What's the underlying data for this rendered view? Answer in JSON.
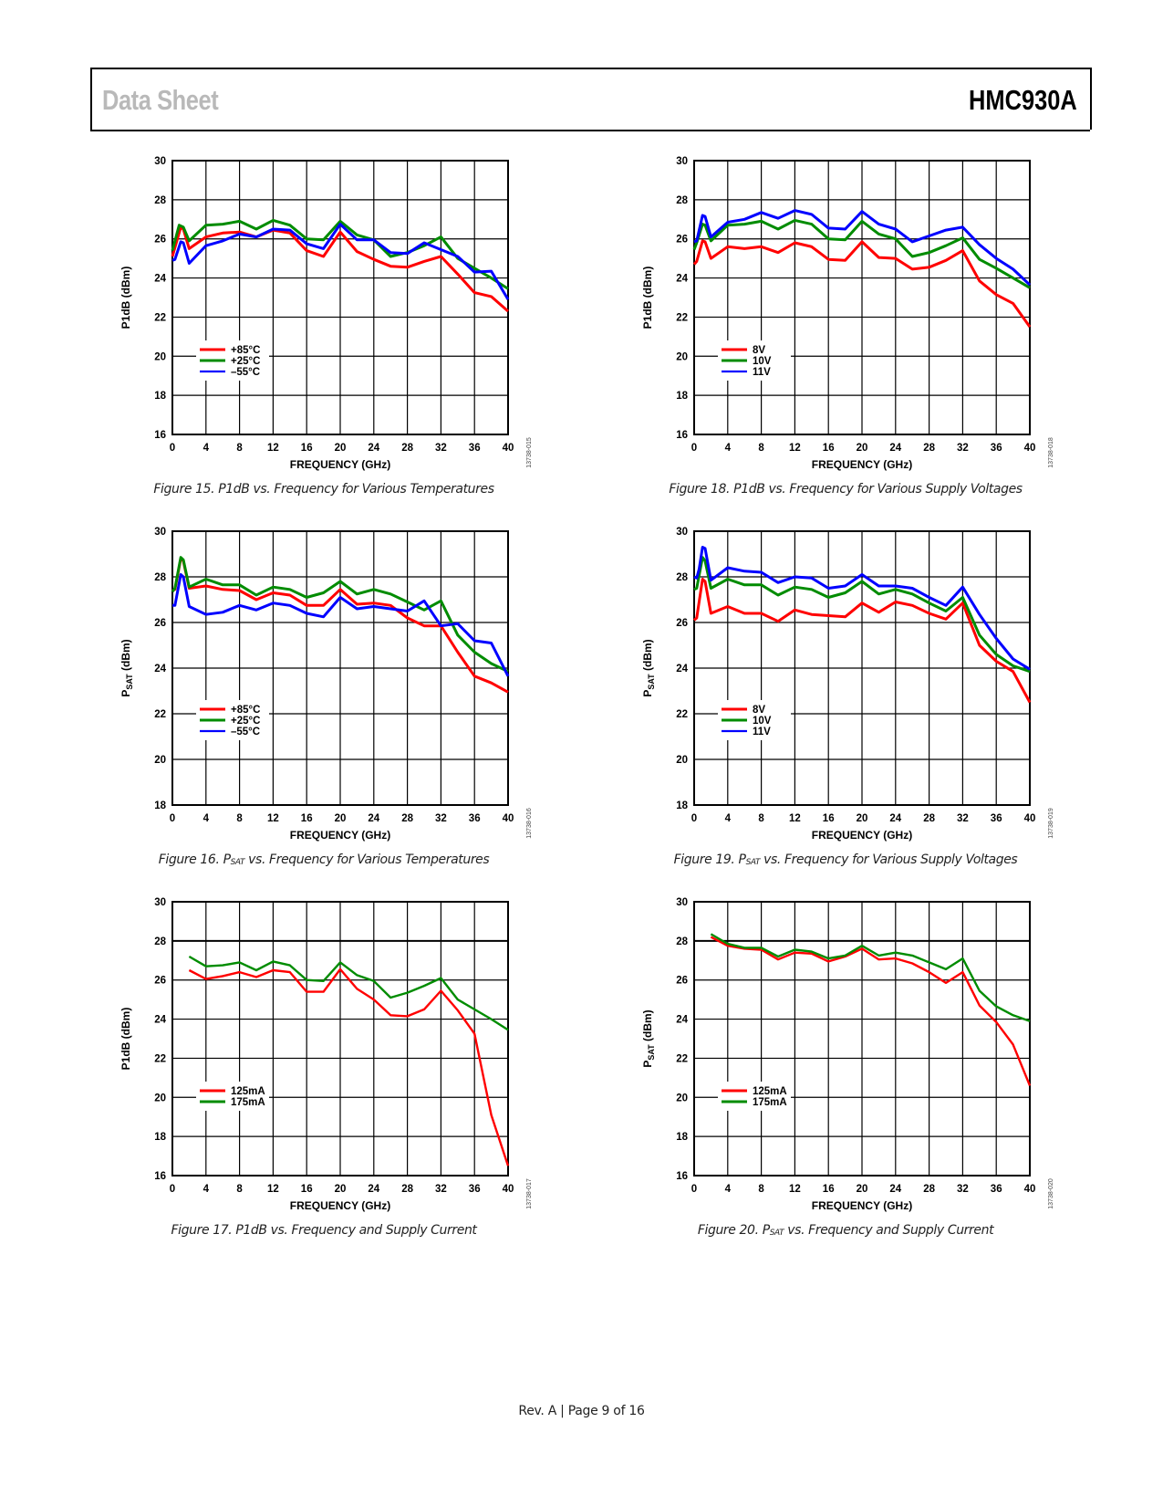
{
  "header": {
    "left": "Data Sheet",
    "right": "HMC930A"
  },
  "footer": {
    "text": "Rev. A | Page 9 of 16"
  },
  "chart_data": [
    {
      "id": "fig15",
      "type": "line",
      "figure_number": "Figure 15.",
      "caption_main": "P1dB",
      "caption_sub": "",
      "caption_rest": " vs. Frequency for Various Temperatures",
      "figure_id": "13738-015",
      "xlabel": "FREQUENCY (GHz)",
      "ylabel_main": "P1dB (dBm)",
      "ylabel_sub": "",
      "ylabel_rest": "",
      "xlim": [
        0,
        40
      ],
      "ylim": [
        16,
        30
      ],
      "xticks": [
        0,
        4,
        8,
        12,
        16,
        20,
        24,
        28,
        32,
        36,
        40
      ],
      "yticks": [
        16,
        18,
        20,
        22,
        24,
        26,
        28,
        30
      ],
      "grid": true,
      "legend_position": "lower-left",
      "series": [
        {
          "name": "+85°C",
          "color": "#ff0000",
          "x": [
            0,
            1,
            1.3,
            2,
            4,
            6,
            8,
            10,
            12,
            14,
            16,
            18,
            20,
            22,
            24,
            26,
            28,
            30,
            32,
            34,
            36,
            38,
            40
          ],
          "y": [
            25.1,
            26.6,
            26.5,
            25.5,
            26.1,
            26.3,
            26.35,
            26.1,
            26.45,
            26.3,
            25.4,
            25.1,
            26.35,
            25.35,
            24.95,
            24.6,
            24.55,
            24.85,
            25.1,
            24.2,
            23.25,
            23.05,
            22.3
          ]
        },
        {
          "name": "+25°C",
          "color": "#008c00",
          "x": [
            0,
            0.8,
            1.3,
            2,
            4,
            6,
            8,
            10,
            12,
            14,
            16,
            18,
            20,
            22,
            24,
            26,
            28,
            30,
            32,
            34,
            36,
            38,
            40
          ],
          "y": [
            25.4,
            26.7,
            26.6,
            25.9,
            26.7,
            26.75,
            26.9,
            26.5,
            26.95,
            26.7,
            26.0,
            25.95,
            26.9,
            26.2,
            25.95,
            25.1,
            25.3,
            25.65,
            26.1,
            25.0,
            24.5,
            24.0,
            23.45
          ]
        },
        {
          "name": "–55°C",
          "color": "#0000ff",
          "x": [
            0,
            0.3,
            1.0,
            1.3,
            2,
            4,
            6,
            8,
            10,
            12,
            14,
            16,
            18,
            20,
            22,
            24,
            26,
            28,
            30,
            32,
            34,
            36,
            38,
            40
          ],
          "y": [
            24.9,
            24.95,
            25.85,
            25.8,
            24.75,
            25.65,
            25.9,
            26.25,
            26.1,
            26.5,
            26.45,
            25.75,
            25.5,
            26.75,
            25.95,
            25.95,
            25.3,
            25.25,
            25.8,
            25.45,
            25.1,
            24.3,
            24.35,
            22.9
          ]
        }
      ]
    },
    {
      "id": "fig18",
      "type": "line",
      "figure_number": "Figure 18.",
      "caption_main": "P1dB",
      "caption_sub": "",
      "caption_rest": " vs. Frequency for Various Supply Voltages",
      "figure_id": "13738-018",
      "xlabel": "FREQUENCY (GHz)",
      "ylabel_main": "P1dB (dBm)",
      "ylabel_sub": "",
      "ylabel_rest": "",
      "xlim": [
        0,
        40
      ],
      "ylim": [
        16,
        30
      ],
      "xticks": [
        0,
        4,
        8,
        12,
        16,
        20,
        24,
        28,
        32,
        36,
        40
      ],
      "yticks": [
        16,
        18,
        20,
        22,
        24,
        26,
        28,
        30
      ],
      "grid": true,
      "legend_position": "lower-left",
      "series": [
        {
          "name": "8V",
          "color": "#ff0000",
          "x": [
            0,
            0.3,
            1.0,
            1.3,
            2,
            4,
            6,
            8,
            10,
            12,
            14,
            16,
            18,
            20,
            22,
            24,
            26,
            28,
            30,
            32,
            34,
            36,
            38,
            40
          ],
          "y": [
            24.7,
            24.85,
            25.9,
            25.85,
            25.0,
            25.6,
            25.5,
            25.6,
            25.3,
            25.8,
            25.6,
            24.95,
            24.9,
            25.85,
            25.05,
            25.0,
            24.45,
            24.55,
            24.9,
            25.4,
            23.85,
            23.15,
            22.7,
            21.5
          ]
        },
        {
          "name": "10V",
          "color": "#008c00",
          "x": [
            0,
            0.3,
            1.0,
            1.3,
            2,
            4,
            6,
            8,
            10,
            12,
            14,
            16,
            18,
            20,
            22,
            24,
            26,
            28,
            30,
            32,
            34,
            36,
            38,
            40
          ],
          "y": [
            25.45,
            25.8,
            26.75,
            26.7,
            25.9,
            26.7,
            26.75,
            26.9,
            26.5,
            26.95,
            26.75,
            26.0,
            25.95,
            26.9,
            26.25,
            26.0,
            25.1,
            25.3,
            25.65,
            26.05,
            24.95,
            24.5,
            24.0,
            23.5
          ]
        },
        {
          "name": "11V",
          "color": "#0000ff",
          "x": [
            0,
            0.3,
            1.0,
            1.3,
            2,
            4,
            6,
            8,
            10,
            12,
            14,
            16,
            18,
            20,
            22,
            24,
            26,
            28,
            30,
            32,
            34,
            36,
            38,
            40
          ],
          "y": [
            25.85,
            25.9,
            27.2,
            27.15,
            26.1,
            26.85,
            27.0,
            27.35,
            27.05,
            27.45,
            27.25,
            26.55,
            26.5,
            27.4,
            26.75,
            26.5,
            25.85,
            26.15,
            26.45,
            26.6,
            25.7,
            25.0,
            24.45,
            23.65
          ]
        }
      ]
    },
    {
      "id": "fig16",
      "type": "line",
      "figure_number": "Figure 16.",
      "caption_main": "P",
      "caption_sub": "SAT",
      "caption_rest": " vs. Frequency for Various Temperatures",
      "figure_id": "13738-016",
      "xlabel": "FREQUENCY (GHz)",
      "ylabel_main": "P",
      "ylabel_sub": "SAT",
      "ylabel_rest": " (dBm)",
      "xlim": [
        0,
        40
      ],
      "ylim": [
        18,
        30
      ],
      "xticks": [
        0,
        4,
        8,
        12,
        16,
        20,
        24,
        28,
        32,
        36,
        40
      ],
      "yticks": [
        18,
        20,
        22,
        24,
        26,
        28,
        30
      ],
      "grid": true,
      "legend_position": "lower-left",
      "series": [
        {
          "name": "+85°C",
          "color": "#ff0000",
          "x": [
            0,
            0.3,
            1.0,
            1.3,
            2,
            4,
            6,
            8,
            10,
            12,
            14,
            16,
            18,
            20,
            22,
            24,
            26,
            28,
            30,
            32,
            34,
            36,
            38,
            40
          ],
          "y": [
            27.4,
            27.45,
            28.8,
            28.7,
            27.5,
            27.6,
            27.45,
            27.4,
            27.0,
            27.3,
            27.2,
            26.75,
            26.75,
            27.45,
            26.8,
            26.85,
            26.75,
            26.2,
            25.85,
            25.85,
            24.7,
            23.65,
            23.35,
            22.95
          ]
        },
        {
          "name": "+25°C",
          "color": "#008c00",
          "x": [
            0,
            0.3,
            1.0,
            1.3,
            2,
            4,
            6,
            8,
            10,
            12,
            14,
            16,
            18,
            20,
            22,
            24,
            26,
            28,
            30,
            32,
            34,
            36,
            38,
            40
          ],
          "y": [
            27.35,
            27.5,
            28.85,
            28.75,
            27.55,
            27.9,
            27.65,
            27.65,
            27.2,
            27.55,
            27.45,
            27.1,
            27.3,
            27.8,
            27.25,
            27.45,
            27.25,
            26.9,
            26.55,
            26.95,
            25.45,
            24.7,
            24.2,
            23.85
          ]
        },
        {
          "name": "–55°C",
          "color": "#0000ff",
          "x": [
            0,
            0.3,
            1.0,
            1.3,
            2,
            4,
            6,
            8,
            10,
            12,
            14,
            16,
            18,
            20,
            22,
            24,
            26,
            28,
            30,
            32,
            34,
            36,
            38,
            40
          ],
          "y": [
            26.75,
            26.75,
            28.1,
            28.0,
            26.7,
            26.35,
            26.45,
            26.75,
            26.55,
            26.85,
            26.75,
            26.4,
            26.25,
            27.1,
            26.6,
            26.7,
            26.6,
            26.5,
            26.95,
            25.85,
            25.95,
            25.2,
            25.1,
            23.65
          ]
        }
      ]
    },
    {
      "id": "fig19",
      "type": "line",
      "figure_number": "Figure 19.",
      "caption_main": "P",
      "caption_sub": "SAT",
      "caption_rest": " vs. Frequency for Various Supply Voltages",
      "figure_id": "13738-019",
      "xlabel": "FREQUENCY (GHz)",
      "ylabel_main": "P",
      "ylabel_sub": "SAT",
      "ylabel_rest": " (dBm)",
      "xlim": [
        0,
        40
      ],
      "ylim": [
        18,
        30
      ],
      "xticks": [
        0,
        4,
        8,
        12,
        16,
        20,
        24,
        28,
        32,
        36,
        40
      ],
      "yticks": [
        18,
        20,
        22,
        24,
        26,
        28,
        30
      ],
      "grid": true,
      "legend_position": "lower-left",
      "series": [
        {
          "name": "8V",
          "color": "#ff0000",
          "x": [
            0,
            0.3,
            1.0,
            1.3,
            2,
            4,
            6,
            8,
            10,
            12,
            14,
            16,
            18,
            20,
            22,
            24,
            26,
            28,
            30,
            32,
            34,
            36,
            38,
            40
          ],
          "y": [
            26.1,
            26.2,
            27.9,
            27.8,
            26.4,
            26.7,
            26.4,
            26.4,
            26.05,
            26.55,
            26.35,
            26.3,
            26.25,
            26.85,
            26.45,
            26.9,
            26.75,
            26.4,
            26.15,
            26.85,
            25.0,
            24.3,
            23.85,
            22.5
          ]
        },
        {
          "name": "10V",
          "color": "#008c00",
          "x": [
            0,
            0.3,
            1.0,
            1.3,
            2,
            4,
            6,
            8,
            10,
            12,
            14,
            16,
            18,
            20,
            22,
            24,
            26,
            28,
            30,
            32,
            34,
            36,
            38,
            40
          ],
          "y": [
            27.45,
            27.5,
            28.85,
            28.7,
            27.5,
            27.9,
            27.65,
            27.65,
            27.2,
            27.55,
            27.45,
            27.1,
            27.3,
            27.8,
            27.25,
            27.45,
            27.25,
            26.85,
            26.5,
            27.1,
            25.45,
            24.6,
            24.1,
            23.85
          ]
        },
        {
          "name": "11V",
          "color": "#0000ff",
          "x": [
            0,
            0.3,
            0.6,
            1.0,
            1.3,
            2,
            4,
            6,
            8,
            10,
            12,
            14,
            16,
            18,
            20,
            22,
            24,
            26,
            28,
            30,
            32,
            34,
            36,
            38,
            40
          ],
          "y": [
            28.0,
            27.95,
            28.35,
            29.3,
            29.25,
            27.85,
            28.4,
            28.25,
            28.2,
            27.75,
            28.0,
            27.95,
            27.5,
            27.6,
            28.1,
            27.6,
            27.6,
            27.5,
            27.1,
            26.75,
            27.55,
            26.35,
            25.3,
            24.4,
            23.95
          ]
        }
      ]
    },
    {
      "id": "fig17",
      "type": "line",
      "figure_number": "Figure 17.",
      "caption_main": "P1dB",
      "caption_sub": "",
      "caption_rest": " vs. Frequency and Supply Current",
      "figure_id": "13738-017",
      "xlabel": "FREQUENCY (GHz)",
      "ylabel_main": "P1dB (dBm)",
      "ylabel_sub": "",
      "ylabel_rest": "",
      "xlim": [
        0,
        40
      ],
      "ylim": [
        16,
        30
      ],
      "xticks": [
        0,
        4,
        8,
        12,
        16,
        20,
        24,
        28,
        32,
        36,
        40
      ],
      "yticks": [
        16,
        18,
        20,
        22,
        24,
        26,
        28,
        30
      ],
      "grid": true,
      "legend_position": "lower-left",
      "series": [
        {
          "name": "125mA",
          "color": "#ff0000",
          "x": [
            2,
            4,
            6,
            8,
            10,
            12,
            14,
            16,
            18,
            20,
            22,
            24,
            26,
            28,
            30,
            32,
            34,
            36,
            38,
            40
          ],
          "y": [
            26.5,
            26.05,
            26.2,
            26.4,
            26.15,
            26.5,
            26.4,
            25.4,
            25.4,
            26.55,
            25.55,
            25.0,
            24.2,
            24.15,
            24.5,
            25.45,
            24.45,
            23.25,
            19.1,
            16.5
          ]
        },
        {
          "name": "175mA",
          "color": "#008c00",
          "x": [
            2,
            4,
            6,
            8,
            10,
            12,
            14,
            16,
            18,
            20,
            22,
            24,
            26,
            28,
            30,
            32,
            34,
            36,
            38,
            40
          ],
          "y": [
            27.2,
            26.7,
            26.75,
            26.9,
            26.5,
            26.95,
            26.75,
            26.0,
            25.95,
            26.9,
            26.25,
            25.95,
            25.1,
            25.35,
            25.7,
            26.1,
            25.0,
            24.5,
            24.0,
            23.45
          ]
        }
      ]
    },
    {
      "id": "fig20",
      "type": "line",
      "figure_number": "Figure 20.",
      "caption_main": "P",
      "caption_sub": "SAT",
      "caption_rest": " vs. Frequency and Supply Current",
      "figure_id": "13738-020",
      "xlabel": "FREQUENCY (GHz)",
      "ylabel_main": "P",
      "ylabel_sub": "SAT",
      "ylabel_rest": " (dBm)",
      "xlim": [
        0,
        40
      ],
      "ylim": [
        16,
        30
      ],
      "xticks": [
        0,
        4,
        8,
        12,
        16,
        20,
        24,
        28,
        32,
        36,
        40
      ],
      "yticks": [
        16,
        18,
        20,
        22,
        24,
        26,
        28,
        30
      ],
      "grid": true,
      "legend_position": "lower-left",
      "series": [
        {
          "name": "125mA",
          "color": "#ff0000",
          "x": [
            2,
            4,
            6,
            8,
            10,
            12,
            14,
            16,
            18,
            20,
            22,
            24,
            26,
            28,
            30,
            32,
            34,
            36,
            38,
            40
          ],
          "y": [
            28.2,
            27.75,
            27.6,
            27.55,
            27.05,
            27.4,
            27.35,
            26.95,
            27.2,
            27.6,
            27.05,
            27.1,
            26.85,
            26.4,
            25.85,
            26.4,
            24.7,
            23.85,
            22.7,
            20.6
          ]
        },
        {
          "name": "175mA",
          "color": "#008c00",
          "x": [
            2,
            4,
            6,
            8,
            10,
            12,
            14,
            16,
            18,
            20,
            22,
            24,
            26,
            28,
            30,
            32,
            34,
            36,
            38,
            40
          ],
          "y": [
            28.35,
            27.85,
            27.65,
            27.65,
            27.2,
            27.55,
            27.45,
            27.1,
            27.25,
            27.75,
            27.25,
            27.4,
            27.25,
            26.9,
            26.55,
            27.1,
            25.45,
            24.65,
            24.2,
            23.9
          ]
        }
      ]
    }
  ]
}
